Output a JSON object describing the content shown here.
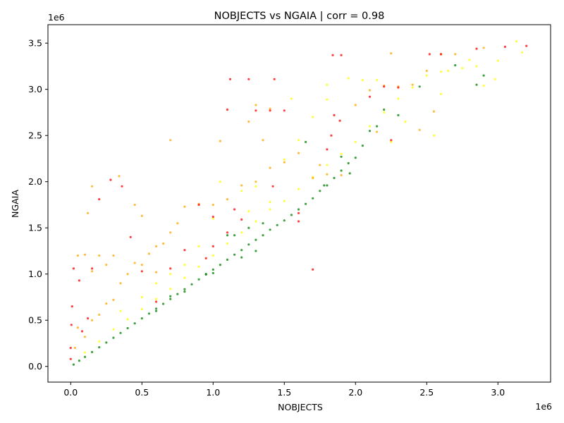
{
  "chart_data": {
    "type": "scatter",
    "title": "NOBJECTS vs NGAIA | corr = 0.98",
    "xlabel": "NOBJECTS",
    "ylabel": "NGAIA",
    "x_offset_text": "1e6",
    "y_offset_text": "1e6",
    "xlim": [
      -160000,
      3370000
    ],
    "ylim": [
      -170000,
      3700000
    ],
    "xticks": [
      0,
      500000,
      1000000,
      1500000,
      2000000,
      2500000,
      3000000
    ],
    "xtick_labels": [
      "0.0",
      "0.5",
      "1.0",
      "1.5",
      "2.0",
      "2.5",
      "3.0"
    ],
    "yticks": [
      0,
      500000,
      1000000,
      1500000,
      2000000,
      2500000,
      3000000,
      3500000
    ],
    "ytick_labels": [
      "0.0",
      "0.5",
      "1.0",
      "1.5",
      "2.0",
      "2.5",
      "3.0",
      "3.5"
    ],
    "grid": false,
    "colors": {
      "green": "#008000",
      "yellow": "#ffff00",
      "orange": "#ffa500",
      "red": "#ff0000"
    },
    "series": [
      {
        "color": "#008000",
        "points": [
          [
            20000,
            20000
          ],
          [
            60000,
            62000
          ],
          [
            100000,
            103000
          ],
          [
            150000,
            155000
          ],
          [
            200000,
            207000
          ],
          [
            250000,
            258000
          ],
          [
            300000,
            310000
          ],
          [
            350000,
            362000
          ],
          [
            400000,
            414000
          ],
          [
            450000,
            466000
          ],
          [
            500000,
            520000
          ],
          [
            550000,
            572000
          ],
          [
            600000,
            625000
          ],
          [
            650000,
            677000
          ],
          [
            700000,
            730000
          ],
          [
            750000,
            783000
          ],
          [
            800000,
            836000
          ],
          [
            850000,
            889000
          ],
          [
            900000,
            942000
          ],
          [
            950000,
            995000
          ],
          [
            1000000,
            1048000
          ],
          [
            1050000,
            1100000
          ],
          [
            1100000,
            1155000
          ],
          [
            1150000,
            1210000
          ],
          [
            1200000,
            1260000
          ],
          [
            1250000,
            1320000
          ],
          [
            1300000,
            1370000
          ],
          [
            1350000,
            1420000
          ],
          [
            1400000,
            1480000
          ],
          [
            1450000,
            1530000
          ],
          [
            1500000,
            1580000
          ],
          [
            1550000,
            1640000
          ],
          [
            1600000,
            1700000
          ],
          [
            1650000,
            1760000
          ],
          [
            1700000,
            1820000
          ],
          [
            1750000,
            1900000
          ],
          [
            1800000,
            1960000
          ],
          [
            1850000,
            2040000
          ],
          [
            1900000,
            2120000
          ],
          [
            1950000,
            2200000
          ],
          [
            2000000,
            2260000
          ],
          [
            2050000,
            2390000
          ],
          [
            2100000,
            2550000
          ],
          [
            2150000,
            2600000
          ],
          [
            2200000,
            2780000
          ],
          [
            2300000,
            2720000
          ],
          [
            2450000,
            3030000
          ],
          [
            2700000,
            3260000
          ],
          [
            2900000,
            3150000
          ],
          [
            2850000,
            3050000
          ],
          [
            1300000,
            1250000
          ],
          [
            1200000,
            1180000
          ],
          [
            1000000,
            1010000
          ],
          [
            800000,
            810000
          ],
          [
            600000,
            600000
          ],
          [
            1100000,
            1420000
          ],
          [
            950000,
            1000000
          ],
          [
            700000,
            760000
          ],
          [
            1900000,
            2270000
          ],
          [
            1650000,
            2430000
          ],
          [
            1250000,
            1500000
          ],
          [
            1350000,
            1550000
          ],
          [
            1150000,
            1420000
          ],
          [
            1780000,
            1960000
          ],
          [
            1960000,
            2090000
          ]
        ]
      },
      {
        "color": "#ffff00",
        "points": [
          [
            100000,
            150000
          ],
          [
            200000,
            270000
          ],
          [
            300000,
            400000
          ],
          [
            400000,
            510000
          ],
          [
            500000,
            620000
          ],
          [
            600000,
            730000
          ],
          [
            700000,
            840000
          ],
          [
            800000,
            960000
          ],
          [
            900000,
            1080000
          ],
          [
            1000000,
            1200000
          ],
          [
            1100000,
            1330000
          ],
          [
            1200000,
            1450000
          ],
          [
            1300000,
            1570000
          ],
          [
            1400000,
            1700000
          ],
          [
            1500000,
            1790000
          ],
          [
            1600000,
            1920000
          ],
          [
            1700000,
            2050000
          ],
          [
            1800000,
            2180000
          ],
          [
            1900000,
            2300000
          ],
          [
            2000000,
            2430000
          ],
          [
            2100000,
            2600000
          ],
          [
            2200000,
            2750000
          ],
          [
            2300000,
            2900000
          ],
          [
            2400000,
            3020000
          ],
          [
            2500000,
            3150000
          ],
          [
            2600000,
            3190000
          ],
          [
            2750000,
            3230000
          ],
          [
            2850000,
            3250000
          ],
          [
            3000000,
            3310000
          ],
          [
            3130000,
            3520000
          ],
          [
            3170000,
            3400000
          ],
          [
            2800000,
            3320000
          ],
          [
            2980000,
            3110000
          ],
          [
            350000,
            600000
          ],
          [
            500000,
            750000
          ],
          [
            700000,
            1000000
          ],
          [
            900000,
            1300000
          ],
          [
            1000000,
            1600000
          ],
          [
            1050000,
            2000000
          ],
          [
            1200000,
            1900000
          ],
          [
            1300000,
            1950000
          ],
          [
            1500000,
            2240000
          ],
          [
            1550000,
            2900000
          ],
          [
            1600000,
            2450000
          ],
          [
            1700000,
            2700000
          ],
          [
            1800000,
            3050000
          ],
          [
            1950000,
            3120000
          ],
          [
            2050000,
            3100000
          ],
          [
            2150000,
            3100000
          ],
          [
            2250000,
            2430000
          ],
          [
            2350000,
            2650000
          ],
          [
            2550000,
            2500000
          ],
          [
            2600000,
            2950000
          ],
          [
            2650000,
            3200000
          ],
          [
            2900000,
            3040000
          ],
          [
            1800000,
            2890000
          ],
          [
            1400000,
            1780000
          ],
          [
            800000,
            1100000
          ],
          [
            600000,
            900000
          ],
          [
            1250000,
            1680000
          ]
        ]
      },
      {
        "color": "#ffa500",
        "points": [
          [
            30000,
            200000
          ],
          [
            50000,
            420000
          ],
          [
            100000,
            320000
          ],
          [
            150000,
            500000
          ],
          [
            200000,
            560000
          ],
          [
            250000,
            680000
          ],
          [
            300000,
            720000
          ],
          [
            350000,
            900000
          ],
          [
            400000,
            1000000
          ],
          [
            450000,
            1120000
          ],
          [
            500000,
            1100000
          ],
          [
            550000,
            1220000
          ],
          [
            600000,
            1300000
          ],
          [
            650000,
            1330000
          ],
          [
            700000,
            1450000
          ],
          [
            750000,
            1550000
          ],
          [
            800000,
            1730000
          ],
          [
            900000,
            1760000
          ],
          [
            1000000,
            1750000
          ],
          [
            1100000,
            1810000
          ],
          [
            1200000,
            1960000
          ],
          [
            1300000,
            2000000
          ],
          [
            1400000,
            2150000
          ],
          [
            1500000,
            2210000
          ],
          [
            1600000,
            2310000
          ],
          [
            1700000,
            2040000
          ],
          [
            1800000,
            2080000
          ],
          [
            1900000,
            2070000
          ],
          [
            2000000,
            2830000
          ],
          [
            2100000,
            2990000
          ],
          [
            2200000,
            3040000
          ],
          [
            2300000,
            3030000
          ],
          [
            2400000,
            3050000
          ],
          [
            2500000,
            3200000
          ],
          [
            2600000,
            3380000
          ],
          [
            2700000,
            3380000
          ],
          [
            2900000,
            3450000
          ],
          [
            2250000,
            3390000
          ],
          [
            2150000,
            2540000
          ],
          [
            2450000,
            2560000
          ],
          [
            50000,
            1200000
          ],
          [
            100000,
            1210000
          ],
          [
            200000,
            1200000
          ],
          [
            300000,
            1200000
          ],
          [
            150000,
            1030000
          ],
          [
            150000,
            1950000
          ],
          [
            120000,
            1660000
          ],
          [
            340000,
            2060000
          ],
          [
            700000,
            2450000
          ],
          [
            1350000,
            2450000
          ],
          [
            1050000,
            2440000
          ],
          [
            1250000,
            2650000
          ],
          [
            1400000,
            2790000
          ],
          [
            1300000,
            2830000
          ],
          [
            450000,
            1750000
          ],
          [
            500000,
            1630000
          ],
          [
            250000,
            1100000
          ],
          [
            600000,
            1020000
          ],
          [
            1750000,
            2180000
          ],
          [
            2550000,
            2760000
          ]
        ]
      },
      {
        "color": "#ff0000",
        "points": [
          [
            0,
            80000
          ],
          [
            0,
            200000
          ],
          [
            5000,
            450000
          ],
          [
            10000,
            650000
          ],
          [
            20000,
            1060000
          ],
          [
            60000,
            930000
          ],
          [
            80000,
            380000
          ],
          [
            120000,
            520000
          ],
          [
            150000,
            1060000
          ],
          [
            200000,
            1810000
          ],
          [
            280000,
            2020000
          ],
          [
            360000,
            1950000
          ],
          [
            420000,
            1400000
          ],
          [
            500000,
            1030000
          ],
          [
            600000,
            700000
          ],
          [
            700000,
            1060000
          ],
          [
            800000,
            1260000
          ],
          [
            900000,
            1750000
          ],
          [
            1000000,
            1620000
          ],
          [
            1100000,
            2780000
          ],
          [
            1120000,
            3110000
          ],
          [
            1250000,
            3110000
          ],
          [
            1300000,
            2770000
          ],
          [
            1400000,
            2770000
          ],
          [
            1430000,
            3110000
          ],
          [
            1500000,
            2770000
          ],
          [
            1600000,
            1570000
          ],
          [
            1700000,
            1050000
          ],
          [
            1800000,
            2350000
          ],
          [
            1840000,
            3370000
          ],
          [
            1900000,
            3370000
          ],
          [
            1850000,
            2720000
          ],
          [
            1890000,
            2660000
          ],
          [
            2200000,
            3030000
          ],
          [
            2300000,
            3020000
          ],
          [
            2520000,
            3380000
          ],
          [
            2600000,
            3380000
          ],
          [
            2850000,
            3440000
          ],
          [
            3050000,
            3460000
          ],
          [
            3200000,
            3470000
          ],
          [
            1200000,
            1590000
          ],
          [
            1150000,
            1700000
          ],
          [
            1420000,
            1950000
          ],
          [
            1830000,
            2500000
          ],
          [
            2100000,
            2920000
          ],
          [
            2250000,
            2450000
          ],
          [
            1600000,
            1660000
          ],
          [
            1000000,
            1300000
          ],
          [
            1100000,
            1450000
          ],
          [
            950000,
            1170000
          ]
        ]
      }
    ]
  }
}
